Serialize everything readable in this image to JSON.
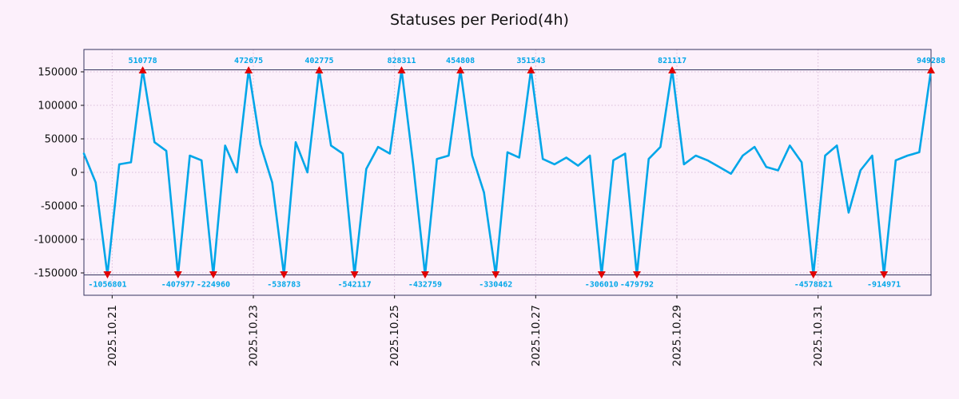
{
  "title": "Statuses per Period(4h)",
  "colors": {
    "background": "#fcf0fb",
    "line": "#00a6e8",
    "marker": "#e00000",
    "label": "#00a6e8",
    "grid": "#d9bcd9",
    "axis": "#35355f",
    "text": "#111111"
  },
  "chart_data": {
    "type": "line",
    "title": "Statuses per Period(4h)",
    "period": "4h",
    "grid": true,
    "legend": "none",
    "ylim": [
      -170000,
      170000
    ],
    "clip_value": 153000,
    "yticks": [
      150000,
      100000,
      50000,
      0,
      -50000,
      -100000,
      -150000
    ],
    "ytick_labels": [
      "150000",
      "100000",
      "50000",
      "0",
      "-50000",
      "-100000",
      "-150000"
    ],
    "xtick_labels": [
      "2025.10.21",
      "2025.10.23",
      "2025.10.25",
      "2025.10.27",
      "2025.10.29",
      "2025.10.31"
    ],
    "xtick_indices": [
      2.4,
      14.4,
      26.4,
      38.4,
      50.4,
      62.4
    ],
    "values": [
      28000,
      -15000,
      -1056801,
      12000,
      15000,
      510778,
      45000,
      32000,
      -407977,
      25000,
      18000,
      -224960,
      40000,
      0,
      472675,
      42000,
      -15000,
      -538783,
      45000,
      0,
      402775,
      40000,
      28000,
      -542117,
      5000,
      38000,
      28000,
      828311,
      10000,
      -432759,
      20000,
      25000,
      454808,
      25000,
      -30000,
      -330462,
      30000,
      22000,
      351543,
      20000,
      12000,
      22000,
      10000,
      25000,
      -306010,
      18000,
      28000,
      -479792,
      20000,
      38000,
      821117,
      12000,
      25000,
      18000,
      8000,
      -2000,
      25000,
      38000,
      8000,
      3000,
      40000,
      15000,
      -4578821,
      25000,
      40000,
      -60000,
      3000,
      25000,
      -914971,
      18000,
      25000,
      30000,
      949288
    ],
    "annotations": {
      "maxima": [
        {
          "index": 5,
          "value": 510778,
          "label": "510778"
        },
        {
          "index": 14,
          "value": 472675,
          "label": "472675"
        },
        {
          "index": 20,
          "value": 402775,
          "label": "402775"
        },
        {
          "index": 27,
          "value": 828311,
          "label": "828311"
        },
        {
          "index": 32,
          "value": 454808,
          "label": "454808"
        },
        {
          "index": 38,
          "value": 351543,
          "label": "351543"
        },
        {
          "index": 50,
          "value": 821117,
          "label": "821117"
        },
        {
          "index": 72,
          "value": 949288,
          "label": "949288"
        }
      ],
      "minima": [
        {
          "index": 2,
          "value": -1056801,
          "label": "-1056801"
        },
        {
          "index": 8,
          "value": -407977,
          "label": "-407977"
        },
        {
          "index": 11,
          "value": -224960,
          "label": "-224960"
        },
        {
          "index": 17,
          "value": -538783,
          "label": "-538783"
        },
        {
          "index": 23,
          "value": -542117,
          "label": "-542117"
        },
        {
          "index": 29,
          "value": -432759,
          "label": "-432759"
        },
        {
          "index": 35,
          "value": -330462,
          "label": "-330462"
        },
        {
          "index": 44,
          "value": -306010,
          "label": "-306010"
        },
        {
          "index": 47,
          "value": -479792,
          "label": "-479792"
        },
        {
          "index": 62,
          "value": -4578821,
          "label": "-4578821"
        },
        {
          "index": 68,
          "value": -914971,
          "label": "-914971"
        }
      ]
    }
  }
}
